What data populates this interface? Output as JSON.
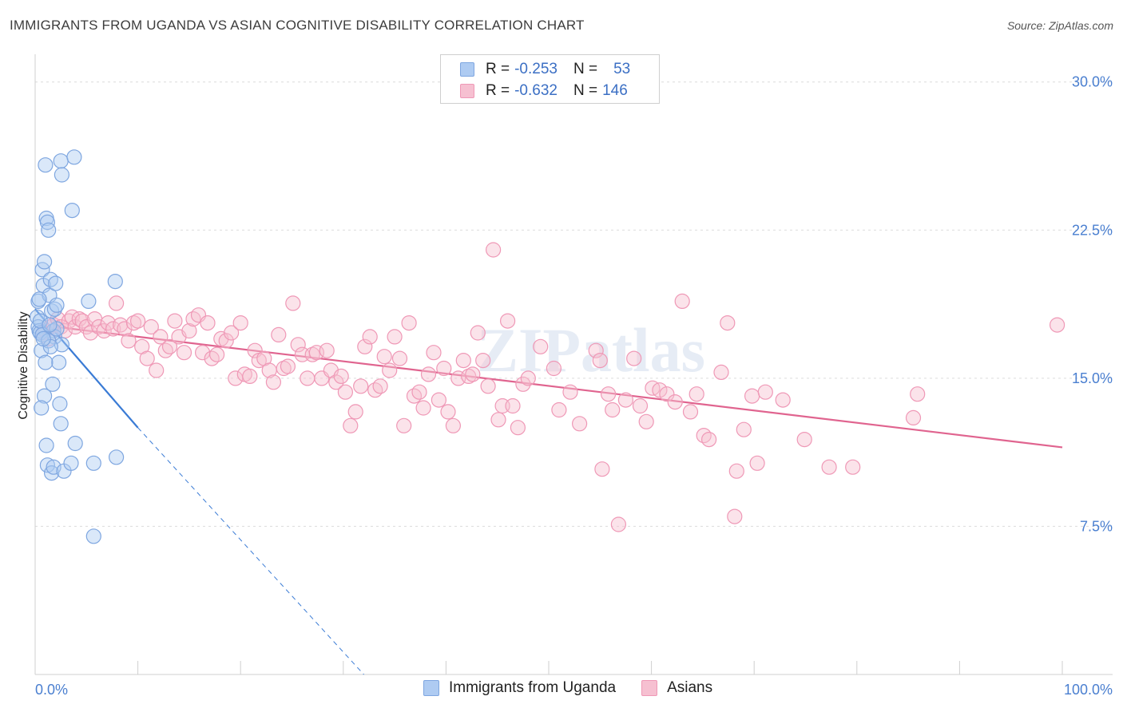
{
  "title": "IMMIGRANTS FROM UGANDA VS ASIAN COGNITIVE DISABILITY CORRELATION CHART",
  "source": "Source: ZipAtlas.com",
  "watermark": "ZIPatlas",
  "legend": {
    "r_label": "R =",
    "n_label": "N =",
    "rows": [
      {
        "r": "-0.253",
        "n": "53",
        "fill": "#aecbf2",
        "stroke": "#7ea6e0"
      },
      {
        "r": "-0.632",
        "n": "146",
        "fill": "#f6c0d1",
        "stroke": "#ef98b6"
      }
    ]
  },
  "bottom_legend": [
    {
      "label": "Immigrants from Uganda",
      "fill": "#aecbf2",
      "stroke": "#7ea6e0"
    },
    {
      "label": "Asians",
      "fill": "#f6c0d1",
      "stroke": "#ef98b6"
    }
  ],
  "chart_data": {
    "type": "scatter",
    "title": "IMMIGRANTS FROM UGANDA VS ASIAN COGNITIVE DISABILITY CORRELATION CHART",
    "xlabel": "",
    "ylabel": "Cognitive Disability",
    "xlim": [
      0,
      100
    ],
    "ylim": [
      0,
      31
    ],
    "x_tick_labels": [
      "0.0%",
      "100.0%"
    ],
    "y_ticks": [
      7.5,
      15.0,
      22.5,
      30.0
    ],
    "y_tick_labels": [
      "7.5%",
      "15.0%",
      "22.5%",
      "30.0%"
    ],
    "grid": true,
    "series": [
      {
        "name": "Immigrants from Uganda",
        "color": "#7ea6e0",
        "fill": "#aecbf2",
        "line_color": "#3a7bd5",
        "trend": {
          "x0": 0,
          "y0": 18.5,
          "x1": 10,
          "y1": 12.5,
          "extend_to_x": 32,
          "extend_to_y": 0
        },
        "points": [
          [
            0.2,
            18.1
          ],
          [
            0.3,
            17.6
          ],
          [
            0.4,
            17.4
          ],
          [
            0.5,
            17.3
          ],
          [
            0.3,
            18.9
          ],
          [
            0.6,
            16.4
          ],
          [
            0.8,
            19.7
          ],
          [
            0.7,
            20.5
          ],
          [
            0.9,
            20.9
          ],
          [
            1.0,
            25.8
          ],
          [
            1.1,
            23.1
          ],
          [
            1.2,
            22.9
          ],
          [
            1.3,
            22.5
          ],
          [
            1.4,
            19.2
          ],
          [
            1.5,
            20.0
          ],
          [
            1.6,
            18.4
          ],
          [
            1.8,
            17.4
          ],
          [
            1.9,
            17.1
          ],
          [
            2.0,
            19.8
          ],
          [
            2.1,
            17.5
          ],
          [
            2.3,
            15.8
          ],
          [
            2.4,
            13.7
          ],
          [
            2.5,
            12.7
          ],
          [
            2.6,
            16.7
          ],
          [
            1.7,
            14.7
          ],
          [
            0.9,
            14.1
          ],
          [
            0.6,
            13.5
          ],
          [
            1.1,
            11.6
          ],
          [
            1.2,
            10.6
          ],
          [
            1.6,
            10.2
          ],
          [
            1.8,
            10.5
          ],
          [
            2.8,
            10.3
          ],
          [
            3.5,
            10.7
          ],
          [
            2.5,
            26.0
          ],
          [
            2.6,
            25.3
          ],
          [
            3.8,
            26.2
          ],
          [
            3.6,
            23.5
          ],
          [
            1.9,
            18.5
          ],
          [
            2.1,
            18.7
          ],
          [
            5.2,
            18.9
          ],
          [
            7.8,
            19.9
          ],
          [
            7.9,
            11.0
          ],
          [
            3.9,
            11.7
          ],
          [
            5.7,
            10.7
          ],
          [
            5.7,
            7.0
          ],
          [
            0.5,
            17.9
          ],
          [
            0.7,
            17.2
          ],
          [
            1.3,
            16.9
          ],
          [
            1.5,
            16.6
          ],
          [
            0.4,
            19.0
          ],
          [
            1.0,
            15.8
          ],
          [
            1.4,
            17.7
          ],
          [
            0.8,
            17.0
          ]
        ]
      },
      {
        "name": "Asians",
        "color": "#ef98b6",
        "fill": "#f6c0d1",
        "line_color": "#e0648f",
        "trend": {
          "x0": 2,
          "y0": 17.6,
          "x1": 100,
          "y1": 11.5
        },
        "points": [
          [
            0.8,
            17.3
          ],
          [
            1.0,
            17.4
          ],
          [
            1.3,
            17.0
          ],
          [
            1.5,
            17.6
          ],
          [
            1.8,
            17.7
          ],
          [
            2.2,
            18.0
          ],
          [
            2.5,
            17.6
          ],
          [
            2.9,
            17.4
          ],
          [
            3.3,
            17.9
          ],
          [
            3.6,
            18.1
          ],
          [
            3.9,
            17.6
          ],
          [
            4.3,
            18.0
          ],
          [
            4.6,
            17.9
          ],
          [
            5.0,
            17.6
          ],
          [
            5.4,
            17.3
          ],
          [
            5.8,
            18.0
          ],
          [
            6.2,
            17.6
          ],
          [
            6.7,
            17.4
          ],
          [
            7.1,
            17.8
          ],
          [
            7.6,
            17.5
          ],
          [
            7.9,
            18.8
          ],
          [
            8.3,
            17.7
          ],
          [
            8.7,
            17.5
          ],
          [
            9.1,
            16.9
          ],
          [
            9.6,
            17.8
          ],
          [
            10.0,
            17.9
          ],
          [
            10.4,
            16.6
          ],
          [
            10.9,
            16.0
          ],
          [
            11.3,
            17.6
          ],
          [
            11.8,
            15.4
          ],
          [
            12.2,
            17.1
          ],
          [
            12.7,
            16.4
          ],
          [
            13.1,
            16.6
          ],
          [
            13.6,
            17.9
          ],
          [
            14.0,
            17.1
          ],
          [
            14.5,
            16.3
          ],
          [
            15.0,
            17.4
          ],
          [
            15.4,
            18.0
          ],
          [
            15.9,
            18.2
          ],
          [
            16.3,
            16.3
          ],
          [
            16.8,
            17.8
          ],
          [
            17.2,
            16.0
          ],
          [
            17.7,
            16.2
          ],
          [
            18.1,
            17.0
          ],
          [
            18.6,
            16.9
          ],
          [
            19.1,
            17.3
          ],
          [
            19.5,
            15.0
          ],
          [
            20.0,
            17.8
          ],
          [
            20.4,
            15.2
          ],
          [
            20.9,
            15.1
          ],
          [
            21.4,
            16.4
          ],
          [
            21.8,
            15.9
          ],
          [
            22.3,
            16.0
          ],
          [
            22.8,
            15.4
          ],
          [
            23.2,
            14.8
          ],
          [
            23.7,
            17.2
          ],
          [
            24.2,
            15.5
          ],
          [
            24.6,
            15.6
          ],
          [
            25.1,
            18.8
          ],
          [
            25.6,
            16.7
          ],
          [
            26.0,
            16.2
          ],
          [
            26.5,
            15.0
          ],
          [
            27.0,
            16.2
          ],
          [
            27.4,
            16.3
          ],
          [
            27.9,
            15.0
          ],
          [
            28.4,
            16.4
          ],
          [
            28.8,
            15.4
          ],
          [
            29.3,
            14.8
          ],
          [
            29.8,
            15.1
          ],
          [
            30.2,
            14.3
          ],
          [
            30.7,
            12.6
          ],
          [
            31.2,
            13.3
          ],
          [
            31.7,
            14.6
          ],
          [
            32.1,
            16.6
          ],
          [
            32.6,
            17.1
          ],
          [
            33.1,
            14.4
          ],
          [
            33.6,
            14.6
          ],
          [
            34.0,
            16.1
          ],
          [
            34.5,
            15.4
          ],
          [
            35.0,
            17.1
          ],
          [
            35.5,
            16.0
          ],
          [
            35.9,
            12.6
          ],
          [
            36.4,
            17.8
          ],
          [
            36.9,
            14.1
          ],
          [
            37.4,
            14.3
          ],
          [
            37.8,
            13.5
          ],
          [
            38.3,
            15.2
          ],
          [
            38.8,
            16.3
          ],
          [
            39.3,
            13.9
          ],
          [
            39.8,
            15.5
          ],
          [
            40.2,
            13.3
          ],
          [
            40.7,
            12.6
          ],
          [
            41.2,
            15.0
          ],
          [
            41.7,
            15.9
          ],
          [
            42.2,
            15.1
          ],
          [
            42.6,
            15.2
          ],
          [
            43.1,
            17.3
          ],
          [
            43.6,
            15.9
          ],
          [
            44.1,
            14.6
          ],
          [
            44.6,
            21.5
          ],
          [
            45.1,
            12.9
          ],
          [
            45.5,
            13.6
          ],
          [
            46.0,
            17.9
          ],
          [
            46.5,
            13.6
          ],
          [
            47.0,
            12.5
          ],
          [
            47.5,
            14.7
          ],
          [
            48.0,
            15.0
          ],
          [
            49.2,
            16.6
          ],
          [
            50.5,
            15.5
          ],
          [
            51.0,
            13.4
          ],
          [
            52.1,
            14.3
          ],
          [
            53.0,
            12.7
          ],
          [
            54.6,
            16.4
          ],
          [
            55.0,
            15.9
          ],
          [
            55.8,
            14.2
          ],
          [
            55.2,
            10.4
          ],
          [
            56.2,
            13.4
          ],
          [
            56.8,
            7.6
          ],
          [
            57.5,
            13.9
          ],
          [
            58.3,
            16.0
          ],
          [
            58.9,
            13.6
          ],
          [
            59.5,
            12.8
          ],
          [
            60.1,
            14.5
          ],
          [
            60.8,
            14.4
          ],
          [
            61.5,
            14.2
          ],
          [
            62.3,
            13.8
          ],
          [
            63.0,
            18.9
          ],
          [
            63.8,
            13.3
          ],
          [
            64.4,
            14.2
          ],
          [
            65.1,
            12.1
          ],
          [
            65.6,
            11.9
          ],
          [
            66.8,
            15.3
          ],
          [
            67.4,
            17.8
          ],
          [
            68.3,
            10.3
          ],
          [
            68.1,
            8.0
          ],
          [
            69.0,
            12.4
          ],
          [
            69.8,
            14.1
          ],
          [
            70.3,
            10.7
          ],
          [
            71.1,
            14.3
          ],
          [
            72.8,
            13.9
          ],
          [
            74.9,
            11.9
          ],
          [
            77.3,
            10.5
          ],
          [
            79.6,
            10.5
          ],
          [
            85.5,
            13.0
          ],
          [
            85.9,
            14.2
          ],
          [
            99.5,
            17.7
          ]
        ]
      }
    ]
  }
}
